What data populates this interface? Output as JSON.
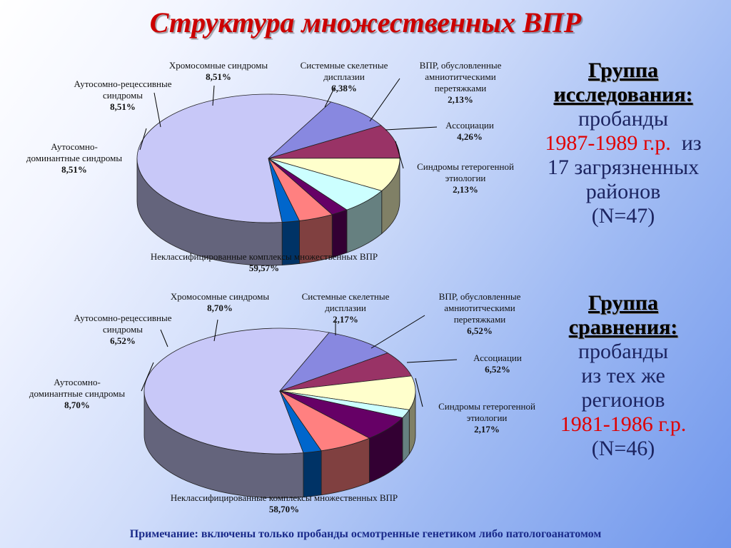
{
  "title": "Структура множественных ВПР",
  "chart_data": [
    {
      "type": "pie",
      "categories": [
        "Неклассифицированные комплексы множественных ВПР",
        "Аутосомно-доминантные синдромы",
        "Аутосомно-рецессивные синдромы",
        "Хромосомные синдромы",
        "Системные скелетные дисплазии",
        "ВПР, обусловленные амниотитческими перетяжками",
        "Ассоциации",
        "Синдромы гетерогенной этиологии"
      ],
      "values": [
        59.57,
        8.51,
        8.51,
        8.51,
        6.38,
        2.13,
        4.26,
        2.13
      ],
      "value_labels": [
        "59,57%",
        "8,51%",
        "8,51%",
        "8,51%",
        "6,38%",
        "2,13%",
        "4,26%",
        "2,13%"
      ],
      "label_lines": [
        [
          "Неклассифицированные комплексы множественных ВПР"
        ],
        [
          "Аутосомно-",
          "доминантные синдромы"
        ],
        [
          "Аутосомно-рецессивные",
          "синдромы"
        ],
        [
          "Хромосомные синдромы"
        ],
        [
          "Системные скелетные",
          "дисплазии"
        ],
        [
          "ВПР, обусловленные",
          "амниотитческими",
          "перетяжками"
        ],
        [
          "Ассоциации"
        ],
        [
          "Синдромы гетерогенной",
          "этиологии"
        ]
      ],
      "colors": [
        "#c8c8f8",
        "#8888e0",
        "#993366",
        "#ffffcc",
        "#ccffff",
        "#660066",
        "#ff8080",
        "#0066cc"
      ]
    },
    {
      "type": "pie",
      "categories": [
        "Неклассифицированные комплексы множественных ВПР",
        "Аутосомно-доминантные синдромы",
        "Аутосомно-рецессивные синдромы",
        "Хромосомные синдромы",
        "Системные скелетные дисплазии",
        "ВПР, обусловленные амниотитческими перетяжками",
        "Ассоциации",
        "Синдромы гетерогенной этиологии"
      ],
      "values": [
        58.7,
        8.7,
        6.52,
        8.7,
        2.17,
        6.52,
        6.52,
        2.17
      ],
      "value_labels": [
        "58,70%",
        "8,70%",
        "6,52%",
        "8,70%",
        "2,17%",
        "6,52%",
        "6,52%",
        "2,17%"
      ],
      "label_lines": [
        [
          "Неклассифицированные комплексы множественных ВПР"
        ],
        [
          "Аутосомно-",
          "доминантные синдромы"
        ],
        [
          "Аутосомно-рецессивные",
          "синдромы"
        ],
        [
          "Хромосомные синдромы"
        ],
        [
          "Системные скелетные",
          "дисплазии"
        ],
        [
          "ВПР, обусловленные",
          "амниотитческими",
          "перетяжками"
        ],
        [
          "Ассоциации"
        ],
        [
          "Синдромы гетерогенной",
          "этиологии"
        ]
      ],
      "colors": [
        "#c8c8f8",
        "#8888e0",
        "#993366",
        "#ffffcc",
        "#ccffff",
        "#660066",
        "#ff8080",
        "#0066cc"
      ]
    }
  ],
  "study_group": {
    "heading_1": "Группа",
    "heading_2": "исследования:",
    "line_1": "пробанды",
    "years": "1987-1989 г.р.",
    "from": "из",
    "line_3": "17 загрязненных",
    "line_4": "районов",
    "n": "(N=47)"
  },
  "comparison_group": {
    "heading_1": "Группа",
    "heading_2": "сравнения:",
    "line_1": "пробанды",
    "line_2": "из тех же",
    "line_3": "регионов",
    "years": "1981-1986 г.р.",
    "n": "(N=46)"
  },
  "note": "Примечание: включены только пробанды осмотренные генетиком либо патологоанатомом"
}
